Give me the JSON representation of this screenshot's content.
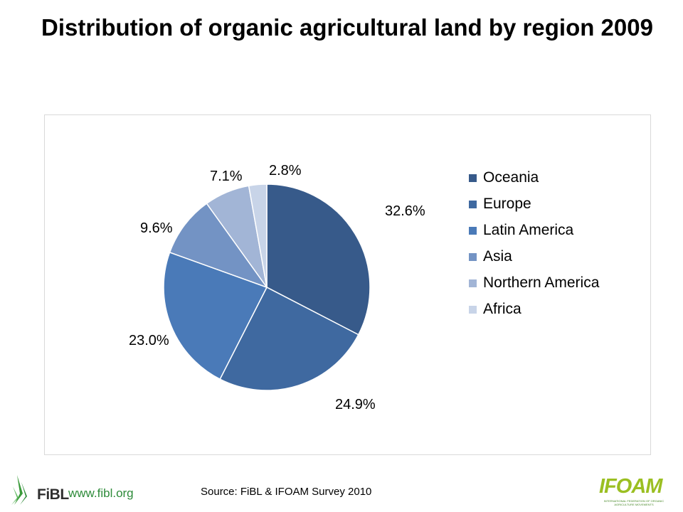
{
  "slide": {
    "title": "Distribution of organic agricultural land by region 2009",
    "source": "Source: FiBL & IFOAM Survey 2010"
  },
  "footer": {
    "fibl_logo_text": "FiBL",
    "fibl_url": "www.fibl.org",
    "ifoam_logo_text": "IFOAM",
    "ifoam_subtitle": "INTERNATIONAL FEDERATION OF ORGANIC AGRICULTURE MOVEMENTS"
  },
  "chart_data": {
    "type": "pie",
    "title": "",
    "categories": [
      "Oceania",
      "Europe",
      "Latin America",
      "Asia",
      "Northern America",
      "Africa"
    ],
    "values": [
      32.6,
      24.9,
      23.0,
      9.6,
      7.1,
      2.8
    ],
    "labels": [
      "32.6%",
      "24.9%",
      "23.0%",
      "9.6%",
      "7.1%",
      "2.8%"
    ],
    "colors": [
      "#375a8a",
      "#3f69a0",
      "#4a7ab8",
      "#7393c4",
      "#a2b5d6",
      "#c8d4e8"
    ],
    "legend_position": "right",
    "start": "12 o'clock",
    "direction": "clockwise"
  }
}
